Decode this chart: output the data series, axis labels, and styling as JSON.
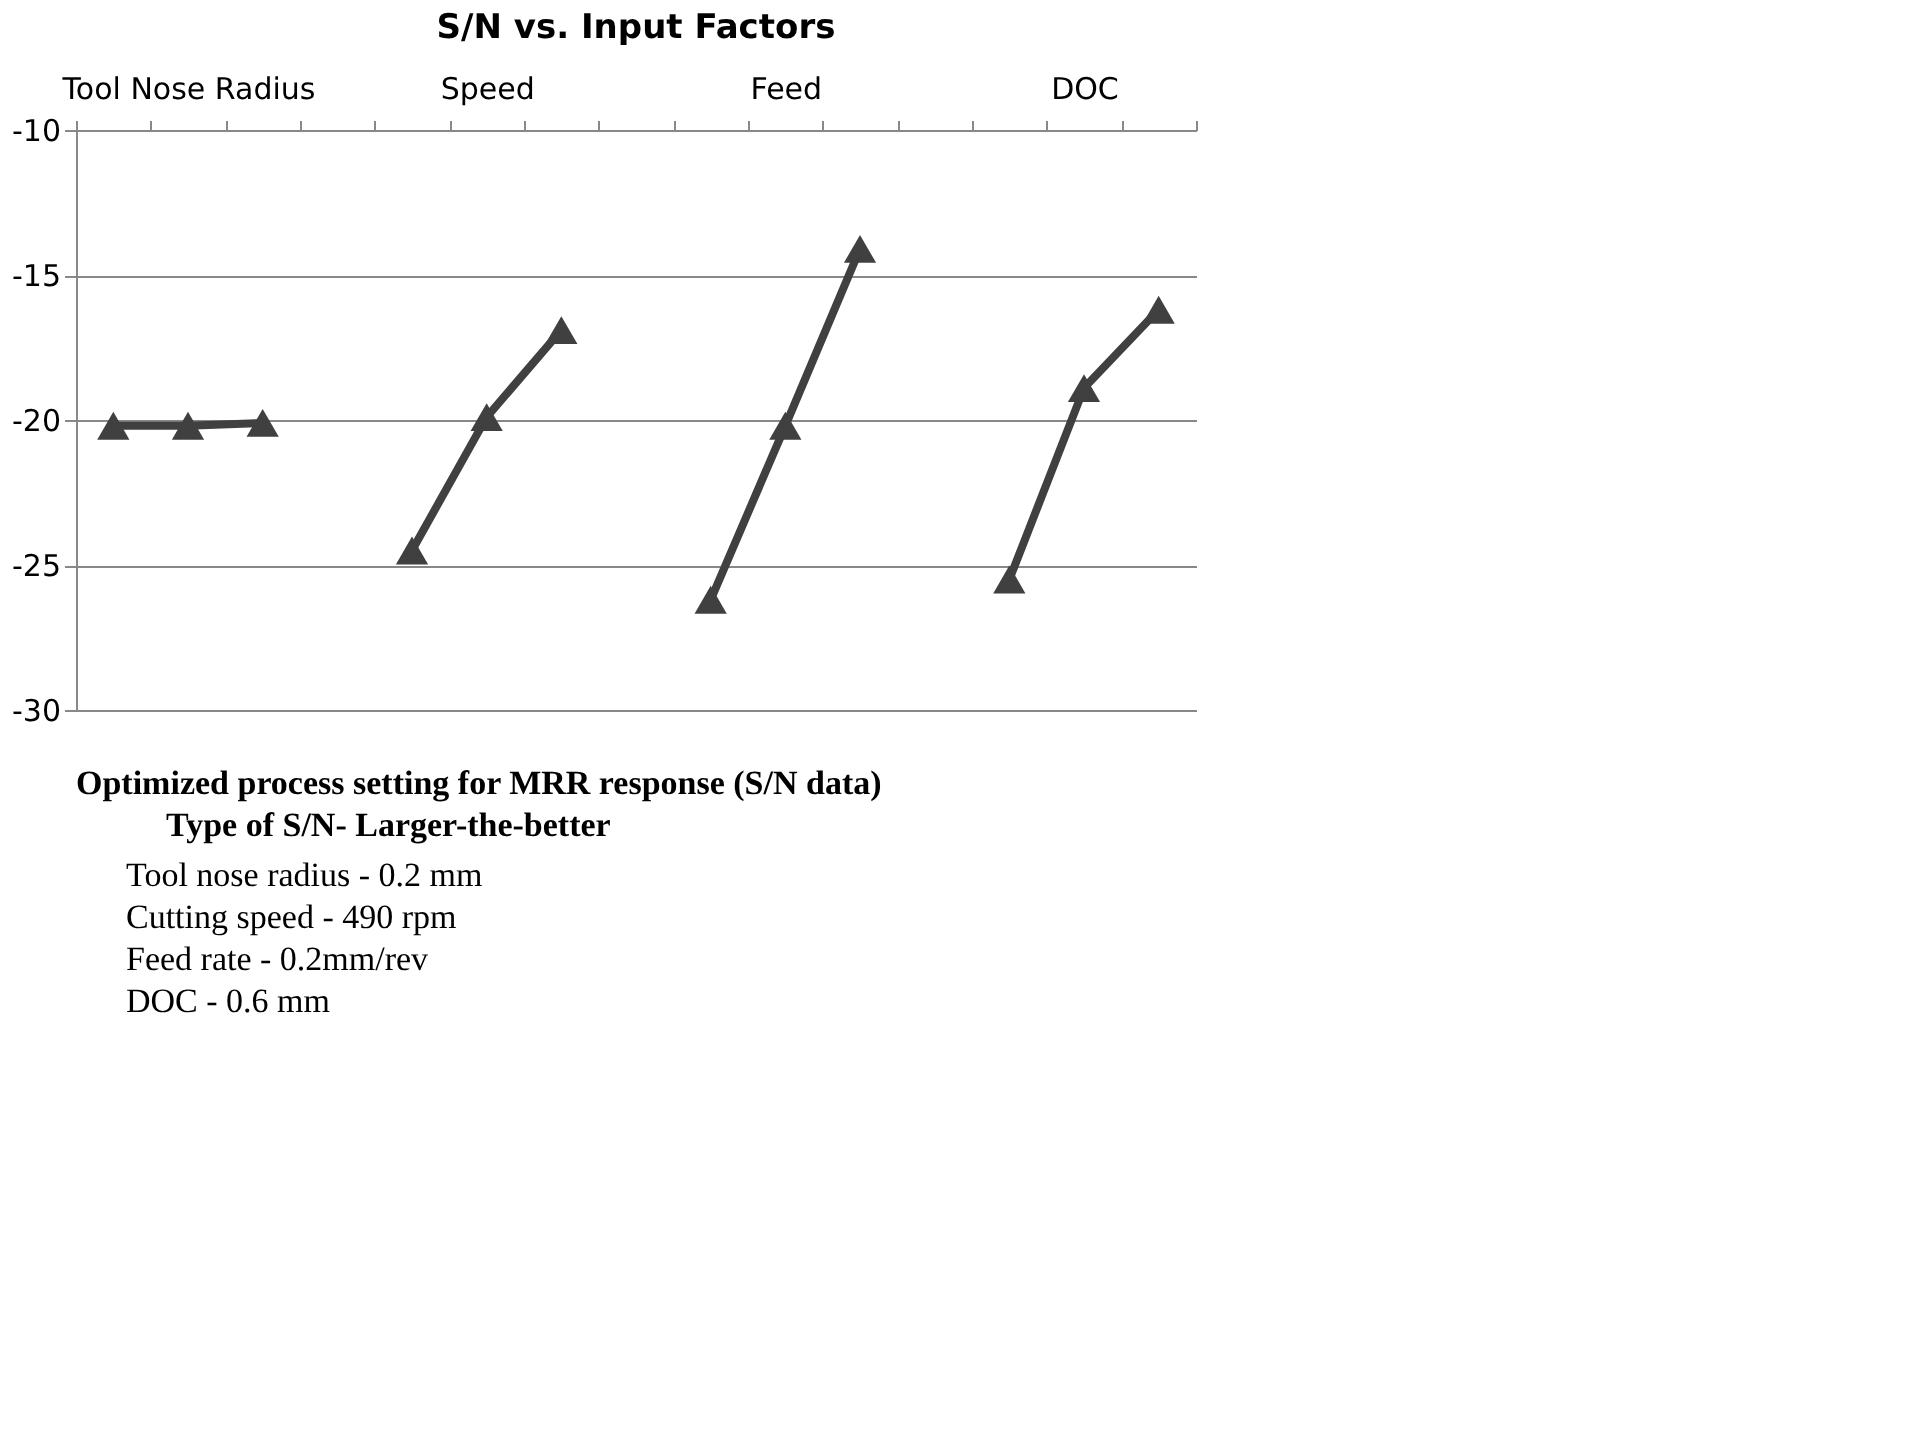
{
  "chart_data": {
    "type": "line",
    "title": "S/N vs. Input Factors",
    "categories": [
      null,
      "Tool Nose Radius",
      null,
      null,
      null,
      "Speed",
      null,
      null,
      null,
      "Feed",
      null,
      null,
      null,
      "DOC",
      null
    ],
    "series": [
      {
        "color": "#404040",
        "values": [
          -20.2,
          -20.2,
          -20.1,
          null,
          -24.5,
          -19.9,
          -16.9,
          null,
          -26.2,
          -20.2,
          -14.1,
          null,
          -25.5,
          -18.9,
          -16.2
        ]
      }
    ],
    "ylim": [
      -30,
      -10
    ],
    "yticks": [
      -10,
      -15,
      -20,
      -25,
      -30
    ],
    "grid": "y",
    "marker": "triangle",
    "line_style": "solid",
    "annotations": [
      "Optimized process setting for MRR response (S/N data)",
      "Type of S/N- Larger-the-better",
      "Tool nose radius -  0.2 mm",
      "Cutting speed   - 490 rpm",
      "Feed rate        - 0.2mm/rev",
      "DOC                - 0.6 mm"
    ]
  }
}
